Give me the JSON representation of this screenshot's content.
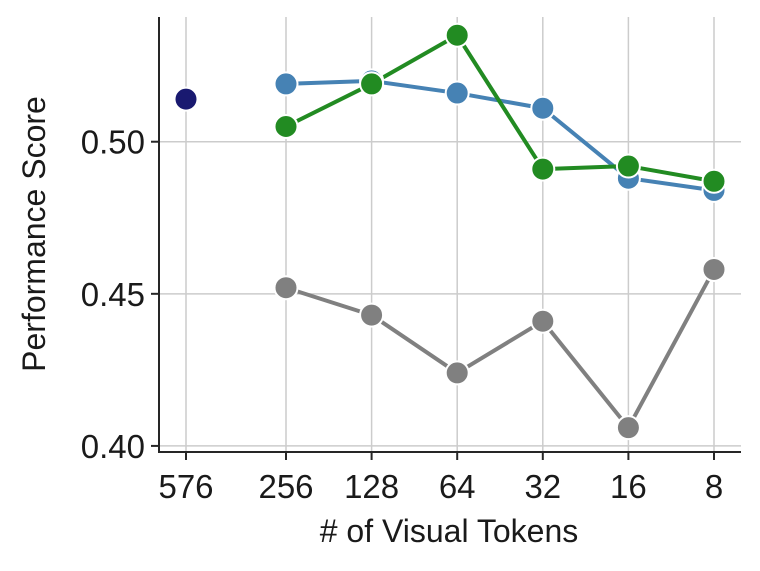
{
  "chart_data": {
    "type": "line",
    "xlabel": "# of Visual Tokens",
    "ylabel": "Performance Score",
    "categories": [
      "576",
      "256",
      "128",
      "64",
      "32",
      "16",
      "8"
    ],
    "ylim": [
      0.398,
      0.541
    ],
    "yticks": [
      0.4,
      0.45,
      0.5
    ],
    "ytick_labels": [
      "0.40",
      "0.45",
      "0.50"
    ],
    "grid": true,
    "legend": "none",
    "series": [
      {
        "color": "#4682b4",
        "values": [
          null,
          0.519,
          0.52,
          0.516,
          0.511,
          0.488,
          0.484
        ]
      },
      {
        "color": "#228b22",
        "values": [
          null,
          0.505,
          0.519,
          0.535,
          0.491,
          0.492,
          0.487
        ]
      },
      {
        "color": "#808080",
        "values": [
          null,
          0.452,
          0.443,
          0.424,
          0.441,
          0.406,
          0.458
        ]
      },
      {
        "color": "#191970",
        "values": [
          0.514,
          null,
          null,
          null,
          null,
          null,
          null
        ]
      }
    ]
  }
}
